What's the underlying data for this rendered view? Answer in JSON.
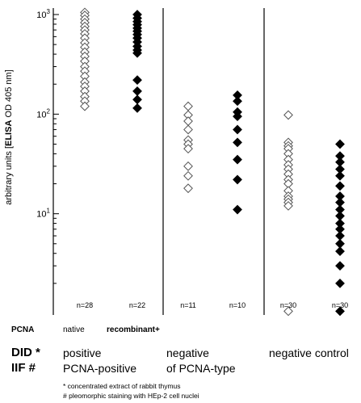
{
  "chart_data": {
    "type": "scatter",
    "y_scale": "log",
    "ylim": [
      1,
      1000
    ],
    "yticks": [
      {
        "value": 10,
        "base": "10",
        "exp": "1"
      },
      {
        "value": 100,
        "base": "10",
        "exp": "2"
      },
      {
        "value": 1000,
        "base": "10",
        "exp": "3"
      }
    ],
    "ylabel_prefix": "arbitrary units [",
    "ylabel_bold": "ELISA",
    "ylabel_suffix": " OD 405 nm]",
    "grid": false,
    "groups": [
      {
        "n_label": "n=28",
        "marker": "open-diamond",
        "values": [
          1050,
          980,
          900,
          830,
          760,
          700,
          640,
          580,
          520,
          470,
          420,
          380,
          340,
          300,
          270,
          240,
          210,
          190,
          170,
          150,
          135,
          120
        ]
      },
      {
        "n_label": "n=22",
        "marker": "filled-diamond",
        "values": [
          1000,
          920,
          850,
          790,
          730,
          680,
          630,
          580,
          530,
          480,
          440,
          410,
          220,
          170,
          140,
          115
        ]
      },
      {
        "n_label": "n=11",
        "marker": "open-diamond",
        "values": [
          120,
          98,
          85,
          70,
          55,
          50,
          45,
          30,
          24,
          18
        ]
      },
      {
        "n_label": "n=10",
        "marker": "filled-diamond",
        "values": [
          155,
          135,
          105,
          95,
          70,
          52,
          35,
          22,
          11
        ]
      },
      {
        "n_label": "n=30",
        "marker": "open-diamond",
        "values": [
          98,
          52,
          48,
          45,
          40,
          35,
          31,
          28,
          25,
          22,
          20,
          17,
          15,
          14,
          13,
          12,
          1.05
        ]
      },
      {
        "n_label": "n=30",
        "marker": "filled-diamond",
        "values": [
          50,
          38,
          33,
          28,
          24,
          19,
          15,
          13,
          11,
          9.5,
          8,
          7,
          6,
          5,
          4.2,
          3,
          2,
          1.05
        ]
      }
    ]
  },
  "labels": {
    "pcna_head": "PCNA",
    "pcna_native": "native",
    "pcna_recombinant": "recombinant+",
    "did_head": "DID *",
    "iif_head": "IIF #",
    "did_positive": "positive",
    "did_negative": "negative",
    "did_negative_control": "negative control",
    "iif_positive": "PCNA-positive",
    "iif_negative": "of PCNA-type",
    "footnote_1": "* concentrated extract of rabbit thymus",
    "footnote_2": "# pleomorphic staining with HEp-2 cell nuclei"
  }
}
